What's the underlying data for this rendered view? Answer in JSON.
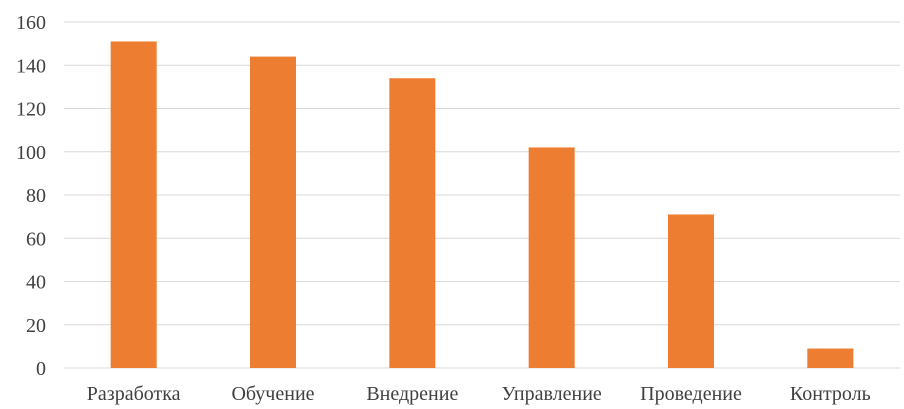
{
  "chart_data": {
    "type": "bar",
    "title": "",
    "xlabel": "",
    "ylabel": "",
    "categories": [
      "Разработка",
      "Обучение",
      "Внедрение",
      "Управление",
      "Проведение",
      "Контроль"
    ],
    "values": [
      151,
      144,
      134,
      102,
      71,
      9
    ],
    "ylim": [
      0,
      160
    ],
    "yticks": [
      0,
      20,
      40,
      60,
      80,
      100,
      120,
      140,
      160
    ],
    "grid": true,
    "legend": "none",
    "bar_color": "#ED7D31",
    "grid_color": "#D9D9D9"
  }
}
